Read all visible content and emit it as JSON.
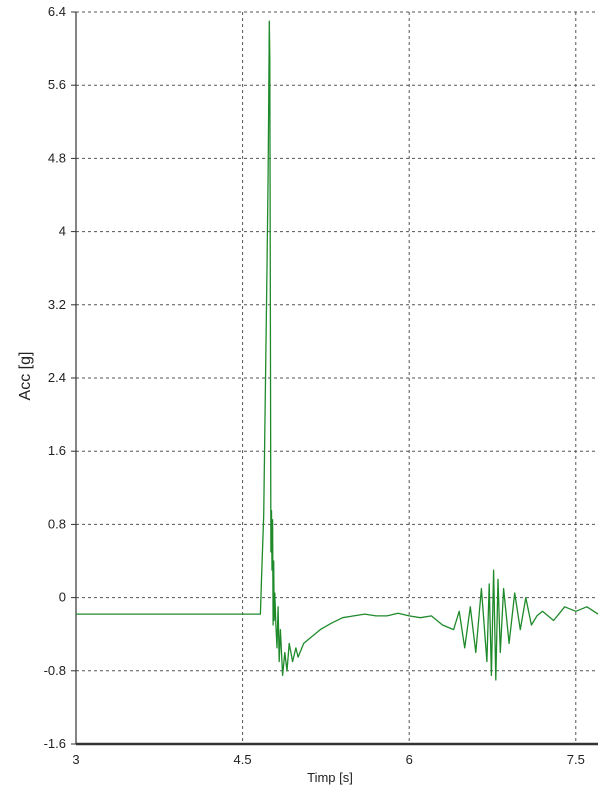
{
  "chart_data": {
    "type": "line",
    "title": "",
    "xlabel": "Timp [s]",
    "ylabel": "Acc [g]",
    "xlim": [
      3,
      7.7
    ],
    "ylim": [
      -1.6,
      6.4
    ],
    "xticks": [
      3,
      4.5,
      6,
      7.5
    ],
    "xtick_labels": [
      "3",
      "4.5",
      "6",
      "7.5"
    ],
    "yticks": [
      6.4,
      5.6,
      4.8,
      4,
      3.2,
      2.4,
      1.6,
      0.8,
      0,
      -0.8,
      -1.6
    ],
    "ytick_labels": [
      "6.4",
      "5.6",
      "4.8",
      "4",
      "3.2",
      "2.4",
      "1.6",
      "0.8",
      "0",
      "-0.8",
      "-1.6"
    ],
    "grid": true,
    "line_color": "#1f8a2a",
    "series": [
      {
        "name": "",
        "x": [
          3.0,
          3.5,
          4.0,
          4.5,
          4.66,
          4.67,
          4.69,
          4.7,
          4.71,
          4.72,
          4.73,
          4.735,
          4.74,
          4.745,
          4.75,
          4.755,
          4.76,
          4.765,
          4.77,
          4.775,
          4.78,
          4.785,
          4.79,
          4.8,
          4.81,
          4.82,
          4.83,
          4.84,
          4.86,
          4.88,
          4.9,
          4.92,
          4.95,
          4.98,
          5.0,
          5.05,
          5.1,
          5.2,
          5.3,
          5.4,
          5.5,
          5.6,
          5.7,
          5.8,
          5.9,
          6.0,
          6.1,
          6.2,
          6.3,
          6.4,
          6.45,
          6.5,
          6.55,
          6.6,
          6.65,
          6.7,
          6.72,
          6.74,
          6.76,
          6.78,
          6.8,
          6.82,
          6.85,
          6.9,
          6.95,
          7.0,
          7.05,
          7.1,
          7.15,
          7.2,
          7.3,
          7.4,
          7.5,
          7.6,
          7.7
        ],
        "y": [
          -0.18,
          -0.18,
          -0.18,
          -0.18,
          -0.18,
          0.2,
          0.9,
          1.8,
          2.7,
          3.6,
          4.6,
          5.4,
          6.3,
          5.9,
          3.0,
          0.5,
          0.95,
          0.3,
          0.85,
          -0.3,
          0.4,
          -0.25,
          0.05,
          -0.3,
          -0.55,
          -0.1,
          -0.7,
          -0.35,
          -0.85,
          -0.6,
          -0.8,
          -0.5,
          -0.7,
          -0.55,
          -0.65,
          -0.5,
          -0.45,
          -0.35,
          -0.28,
          -0.22,
          -0.2,
          -0.18,
          -0.2,
          -0.2,
          -0.17,
          -0.2,
          -0.22,
          -0.2,
          -0.3,
          -0.35,
          -0.15,
          -0.55,
          -0.1,
          -0.6,
          0.1,
          -0.7,
          0.15,
          -0.85,
          0.3,
          -0.9,
          0.2,
          -0.6,
          0.1,
          -0.5,
          0.05,
          -0.35,
          0.0,
          -0.3,
          -0.2,
          -0.15,
          -0.25,
          -0.1,
          -0.15,
          -0.1,
          -0.18
        ]
      }
    ]
  }
}
